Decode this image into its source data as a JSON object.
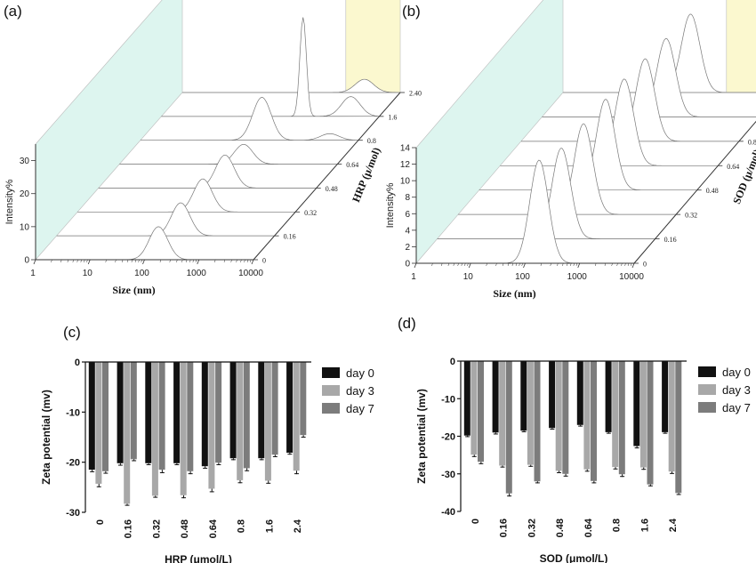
{
  "panels": {
    "a": "(a)",
    "b": "(b)",
    "c": "(c)",
    "d": "(d)"
  },
  "colors": {
    "day0": "#111111",
    "day3": "#a8a8a8",
    "day7": "#7c7c7c",
    "back_wall": "#fbf8cf",
    "side_wall": "#ddf5ef",
    "floor_line": "#cfcfcf"
  },
  "chart_data": [
    {
      "id": "a",
      "type": "area",
      "title": "",
      "xlabel": "Size (nm)",
      "ylabel": "Intensity%",
      "zlabel": "HRP (μ/mol)",
      "x_scale": "log",
      "x_ticks": [
        "1",
        "10",
        "100",
        "1000",
        "10000"
      ],
      "y_ticks": [
        "0",
        "10",
        "20",
        "30"
      ],
      "ylim": [
        0,
        35
      ],
      "z_ticks": [
        "0",
        "0.16",
        "0.32",
        "0.48",
        "0.64",
        "0.8",
        "1.6",
        "2.40"
      ],
      "series": [
        {
          "name": "0",
          "peaks": [
            {
              "center": 180,
              "height": 10
            }
          ]
        },
        {
          "name": "0.16",
          "peaks": [
            {
              "center": 190,
              "height": 10
            }
          ]
        },
        {
          "name": "0.32",
          "peaks": [
            {
              "center": 200,
              "height": 10
            }
          ]
        },
        {
          "name": "0.48",
          "peaks": [
            {
              "center": 210,
              "height": 10
            }
          ]
        },
        {
          "name": "0.64",
          "peaks": [
            {
              "center": 190,
              "height": 6
            }
          ]
        },
        {
          "name": "0.8",
          "peaks": [
            {
              "center": 170,
              "height": 13
            },
            {
              "center": 3000,
              "height": 2
            }
          ]
        },
        {
          "name": "1.6",
          "peaks": [
            {
              "center": 400,
              "height": 30
            },
            {
              "center": 3000,
              "height": 6
            }
          ]
        },
        {
          "name": "2.40",
          "peaks": [
            {
              "center": 2200,
              "height": 4
            }
          ]
        }
      ]
    },
    {
      "id": "b",
      "type": "area",
      "title": "",
      "xlabel": "Size (nm)",
      "ylabel": "Intensity%",
      "zlabel": "SOD (μ/mol)",
      "x_scale": "log",
      "x_ticks": [
        "1",
        "10",
        "100",
        "1000",
        "10000"
      ],
      "y_ticks": [
        "0",
        "2",
        "4",
        "6",
        "8",
        "10",
        "12",
        "14"
      ],
      "ylim": [
        0,
        14
      ],
      "z_ticks": [
        "0",
        "0.16",
        "0.32",
        "0.48",
        "0.64",
        "0.8",
        "1.6",
        "2.40"
      ],
      "series": [
        {
          "name": "0",
          "peaks": [
            {
              "center": 180,
              "height": 12.5
            }
          ]
        },
        {
          "name": "0.16",
          "peaks": [
            {
              "center": 190,
              "height": 11
            }
          ]
        },
        {
          "name": "0.32",
          "peaks": [
            {
              "center": 200,
              "height": 11
            }
          ]
        },
        {
          "name": "0.48",
          "peaks": [
            {
              "center": 210,
              "height": 11
            }
          ]
        },
        {
          "name": "0.64",
          "peaks": [
            {
              "center": 190,
              "height": 10.5
            }
          ]
        },
        {
          "name": "0.8",
          "peaks": [
            {
              "center": 190,
              "height": 10
            }
          ]
        },
        {
          "name": "1.6",
          "peaks": [
            {
              "center": 190,
              "height": 9.5
            }
          ]
        },
        {
          "name": "2.40",
          "peaks": [
            {
              "center": 220,
              "height": 9.5
            }
          ]
        }
      ]
    },
    {
      "id": "c",
      "type": "bar",
      "title": "",
      "xlabel": "HRP (μmol/L)",
      "ylabel": "Zeta potential (mv)",
      "categories": [
        "0",
        "0.16",
        "0.32",
        "0.48",
        "0.64",
        "0.8",
        "1.6",
        "2.4"
      ],
      "ylim": [
        -30,
        0
      ],
      "y_ticks": [
        "0",
        "-10",
        "-20",
        "-30"
      ],
      "series": [
        {
          "name": "day 0",
          "values": [
            -21.5,
            -20.2,
            -20.2,
            -20.2,
            -20.8,
            -19.2,
            -19.2,
            -18.1
          ],
          "errors": [
            0.4,
            0.4,
            0.3,
            0.3,
            0.4,
            0.3,
            0.3,
            0.3
          ]
        },
        {
          "name": "day 3",
          "values": [
            -24.3,
            -28.3,
            -26.7,
            -26.6,
            -25.3,
            -23.6,
            -23.7,
            -21.7
          ],
          "errors": [
            0.6,
            0.3,
            0.3,
            0.5,
            0.6,
            0.5,
            0.5,
            0.6
          ]
        },
        {
          "name": "day 7",
          "values": [
            -21.8,
            -19.4,
            -21.5,
            -21.8,
            -20.1,
            -21.2,
            -18.5,
            -14.6
          ],
          "errors": [
            0.4,
            0.3,
            0.6,
            0.5,
            0.4,
            0.5,
            0.4,
            0.4
          ]
        }
      ],
      "legend": "right"
    },
    {
      "id": "d",
      "type": "bar",
      "title": "",
      "xlabel": "SOD (μmol/L)",
      "ylabel": "Zeta potential (mv)",
      "categories": [
        "0",
        "0.16",
        "0.32",
        "0.48",
        "0.64",
        "0.8",
        "1.6",
        "2.4"
      ],
      "ylim": [
        -40,
        0
      ],
      "y_ticks": [
        "0",
        "-10",
        "-20",
        "-30",
        "-40"
      ],
      "series": [
        {
          "name": "day 0",
          "values": [
            -19.8,
            -19.0,
            -18.5,
            -17.8,
            -17.0,
            -18.9,
            -22.6,
            -18.9
          ],
          "errors": [
            0.3,
            0.4,
            0.3,
            0.3,
            0.3,
            0.3,
            0.5,
            0.3
          ]
        },
        {
          "name": "day 3",
          "values": [
            -24.9,
            -27.8,
            -27.6,
            -29.2,
            -28.8,
            -28.2,
            -28.3,
            -29.4
          ],
          "errors": [
            0.5,
            0.4,
            0.4,
            0.5,
            0.5,
            0.5,
            0.5,
            0.5
          ]
        },
        {
          "name": "day 7",
          "values": [
            -26.8,
            -35.2,
            -32.0,
            -30.0,
            -31.9,
            -30.1,
            -32.8,
            -35.1
          ],
          "errors": [
            0.5,
            0.7,
            0.4,
            0.6,
            0.5,
            0.6,
            0.4,
            0.4
          ]
        }
      ],
      "legend": "right"
    }
  ]
}
